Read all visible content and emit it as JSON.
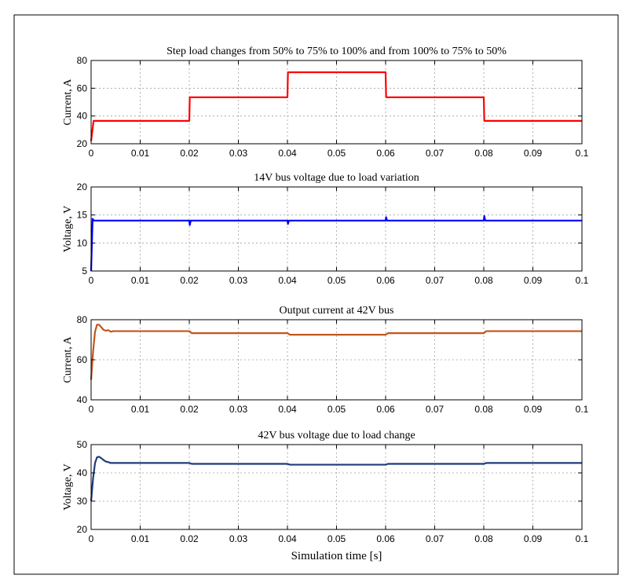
{
  "chart_data": [
    {
      "type": "line",
      "title": "Step load changes from 50% to 75% to 100% and from 100% to 75% to 50%",
      "xlabel": "",
      "ylabel": "Current, A",
      "xlim": [
        0,
        0.1
      ],
      "ylim": [
        20,
        80
      ],
      "xticks": [
        "0",
        "0.01",
        "0.02",
        "0.03",
        "0.04",
        "0.05",
        "0.06",
        "0.07",
        "0.08",
        "0.09",
        "0.1"
      ],
      "yticks": [
        "20",
        "40",
        "60",
        "80"
      ],
      "grid": true,
      "color": "#ff0000",
      "x": [
        0,
        0.0005,
        0.02,
        0.0201,
        0.04,
        0.0401,
        0.06,
        0.0601,
        0.08,
        0.0801,
        0.1
      ],
      "y": [
        22,
        36.5,
        36.5,
        53.5,
        53.5,
        71.5,
        71.5,
        53.5,
        53.5,
        36.5,
        36.5
      ]
    },
    {
      "type": "line",
      "title": "14V bus voltage due to load variation",
      "xlabel": "",
      "ylabel": "Voltage, V",
      "xlim": [
        0,
        0.1
      ],
      "ylim": [
        5,
        20
      ],
      "xticks": [
        "0",
        "0.01",
        "0.02",
        "0.03",
        "0.04",
        "0.05",
        "0.06",
        "0.07",
        "0.08",
        "0.09",
        "0.1"
      ],
      "yticks": [
        "5",
        "10",
        "15",
        "20"
      ],
      "grid": true,
      "color": "#0000ff",
      "x": [
        0,
        0.0003,
        0.0006,
        0.02,
        0.0201,
        0.0203,
        0.04,
        0.0401,
        0.0403,
        0.06,
        0.0601,
        0.0603,
        0.08,
        0.0801,
        0.0803,
        0.1
      ],
      "y": [
        5,
        14.3,
        14,
        14,
        13.2,
        14,
        14,
        13.4,
        14,
        14,
        14.6,
        14,
        14,
        14.8,
        14,
        14
      ]
    },
    {
      "type": "line",
      "title": "Output current at 42V bus",
      "xlabel": "",
      "ylabel": "Current, A",
      "xlim": [
        0,
        0.1
      ],
      "ylim": [
        40,
        80
      ],
      "xticks": [
        "0",
        "0.01",
        "0.02",
        "0.03",
        "0.04",
        "0.05",
        "0.06",
        "0.07",
        "0.08",
        "0.09",
        "0.1"
      ],
      "yticks": [
        "40",
        "60",
        "80"
      ],
      "grid": true,
      "color": "#c0561c",
      "x": [
        0,
        0.0004,
        0.0008,
        0.0012,
        0.0016,
        0.002,
        0.0025,
        0.003,
        0.0035,
        0.004,
        0.0045,
        0.005,
        0.02,
        0.0205,
        0.04,
        0.0405,
        0.06,
        0.0605,
        0.08,
        0.0805,
        0.1
      ],
      "y": [
        50,
        64,
        74,
        77.5,
        77.5,
        76.5,
        75,
        74.5,
        74.8,
        74,
        74.3,
        74.3,
        74.3,
        73.3,
        73.3,
        72.5,
        72.5,
        73.3,
        73.3,
        74.3,
        74.3
      ]
    },
    {
      "type": "line",
      "title": "42V bus  voltage due to load change",
      "xlabel": "Simulation time [s]",
      "ylabel": "Voltage, V",
      "xlim": [
        0,
        0.1
      ],
      "ylim": [
        20,
        50
      ],
      "xticks": [
        "0",
        "0.01",
        "0.02",
        "0.03",
        "0.04",
        "0.05",
        "0.06",
        "0.07",
        "0.08",
        "0.09",
        "0.1"
      ],
      "yticks": [
        "20",
        "30",
        "40",
        "50"
      ],
      "grid": true,
      "color": "#1f3b7a",
      "x": [
        0,
        0.0004,
        0.0008,
        0.0012,
        0.0016,
        0.002,
        0.0025,
        0.003,
        0.0035,
        0.004,
        0.0045,
        0.005,
        0.02,
        0.0205,
        0.04,
        0.0405,
        0.06,
        0.0605,
        0.08,
        0.0805,
        0.1
      ],
      "y": [
        30,
        38,
        43.5,
        45.5,
        45.7,
        45.3,
        44.6,
        44,
        43.8,
        43.5,
        43.5,
        43.5,
        43.5,
        43.2,
        43.2,
        42.9,
        42.9,
        43.2,
        43.2,
        43.5,
        43.5
      ]
    }
  ]
}
